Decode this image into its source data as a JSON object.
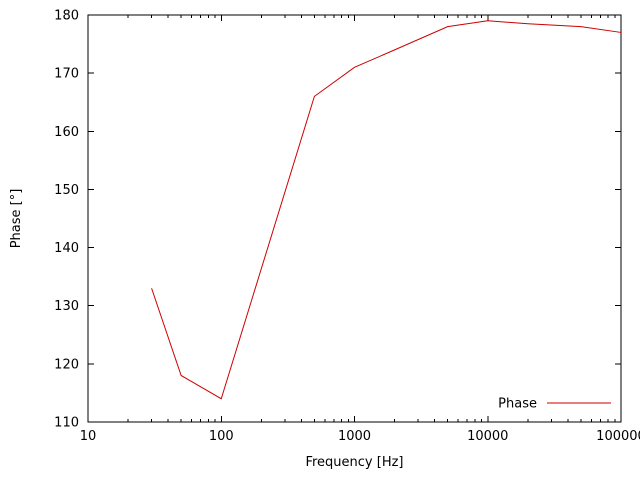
{
  "chart_data": {
    "type": "line",
    "title": "",
    "xlabel": "Frequency [Hz]",
    "ylabel": "Phase [°]",
    "x_scale": "log",
    "xlim": [
      10,
      100000
    ],
    "ylim": [
      110,
      180
    ],
    "x_ticks": [
      10,
      100,
      1000,
      10000,
      100000
    ],
    "x_tick_labels": [
      "10",
      "100",
      "1000",
      "10000",
      "100000"
    ],
    "y_ticks": [
      110,
      120,
      130,
      140,
      150,
      160,
      170,
      180
    ],
    "y_tick_labels": [
      "110",
      "120",
      "130",
      "140",
      "150",
      "160",
      "170",
      "180"
    ],
    "grid": false,
    "legend": {
      "label": "Phase",
      "position": "inside-bottom-right"
    },
    "series": [
      {
        "name": "Phase",
        "color": "#cc0000",
        "points": [
          [
            30,
            133
          ],
          [
            50,
            118
          ],
          [
            100,
            114
          ],
          [
            500,
            166
          ],
          [
            1000,
            171
          ],
          [
            2000,
            174
          ],
          [
            5000,
            178
          ],
          [
            10000,
            179
          ],
          [
            20000,
            178.5
          ],
          [
            50000,
            178
          ],
          [
            100000,
            177
          ]
        ]
      }
    ],
    "colors": {
      "axis": "#000000",
      "text": "#000000",
      "background": "#ffffff"
    }
  }
}
